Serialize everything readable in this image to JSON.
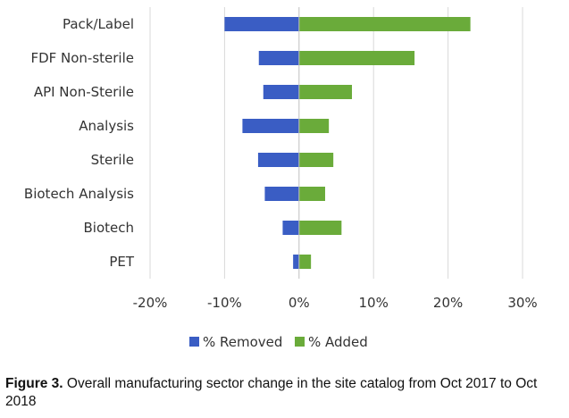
{
  "chart_data": {
    "type": "bar",
    "orientation": "horizontal",
    "categories": [
      "Pack/Label",
      "FDF Non-sterile",
      "API Non-Sterile",
      "Analysis",
      "Sterile",
      "Biotech Analysis",
      "Biotech",
      "PET"
    ],
    "series": [
      {
        "name": "% Removed",
        "color": "#3a5dc4",
        "values": [
          -10.0,
          -5.4,
          -4.8,
          -7.6,
          -5.5,
          -4.6,
          -2.2,
          -0.8
        ]
      },
      {
        "name": "% Added",
        "color": "#6aab3a",
        "values": [
          23.0,
          15.5,
          7.1,
          4.0,
          4.6,
          3.5,
          5.7,
          1.6
        ]
      }
    ],
    "xlim": [
      -20,
      30
    ],
    "xticks": [
      -20,
      -10,
      0,
      10,
      20,
      30
    ],
    "xtick_labels": [
      "-20%",
      "-10%",
      "0%",
      "10%",
      "20%",
      "30%"
    ],
    "grid": true,
    "legend": "bottom",
    "title": "",
    "xlabel": "",
    "ylabel": ""
  },
  "caption": {
    "bold": "Figure 3.",
    "text": " Overall manufacturing sector change in the site catalog from Oct 2017 to Oct 2018"
  },
  "colors": {
    "grid": "#d9d9d9",
    "axis": "#bfbfbf",
    "text": "#333333"
  }
}
